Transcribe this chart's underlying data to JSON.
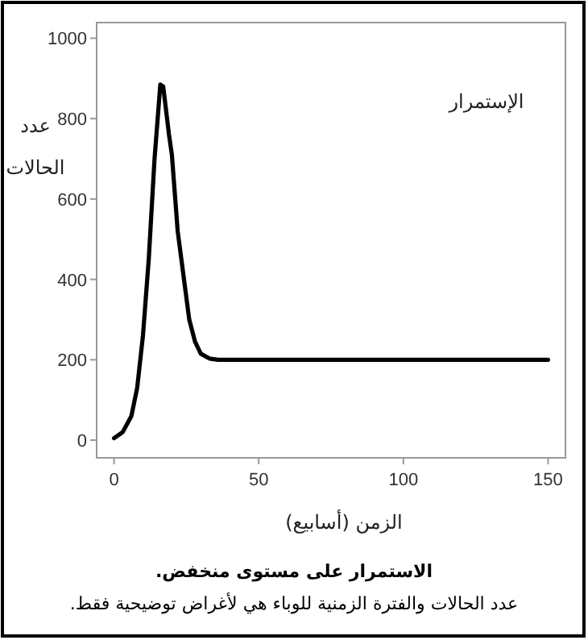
{
  "chart_data": {
    "type": "line",
    "ylabel": "عدد\nالحالات",
    "xlabel": "الزمن (أسابيع)",
    "annotations": [
      "الإستمرار",
      "الاستمرار على مستوى منخفض.",
      "عدد الحالات والفترة الزمنية للوباء هي لأغراض توضيحية فقط."
    ],
    "xlim": [
      -6,
      156
    ],
    "ylim": [
      -44,
      1039
    ],
    "xticks": [
      0,
      50,
      100,
      150
    ],
    "yticks": [
      0,
      200,
      400,
      600,
      800,
      1000
    ],
    "marker": "none",
    "line_style": "solid",
    "series": [
      {
        "color": "#000000",
        "x": [
          0,
          3,
          6,
          8,
          10,
          12,
          14,
          16,
          17,
          19,
          20,
          22,
          24,
          26,
          28,
          30,
          33,
          36,
          40,
          150
        ],
        "values": [
          5,
          20,
          60,
          130,
          260,
          450,
          700,
          885,
          880,
          760,
          710,
          520,
          410,
          300,
          245,
          215,
          203,
          200,
          200,
          200
        ]
      }
    ]
  }
}
